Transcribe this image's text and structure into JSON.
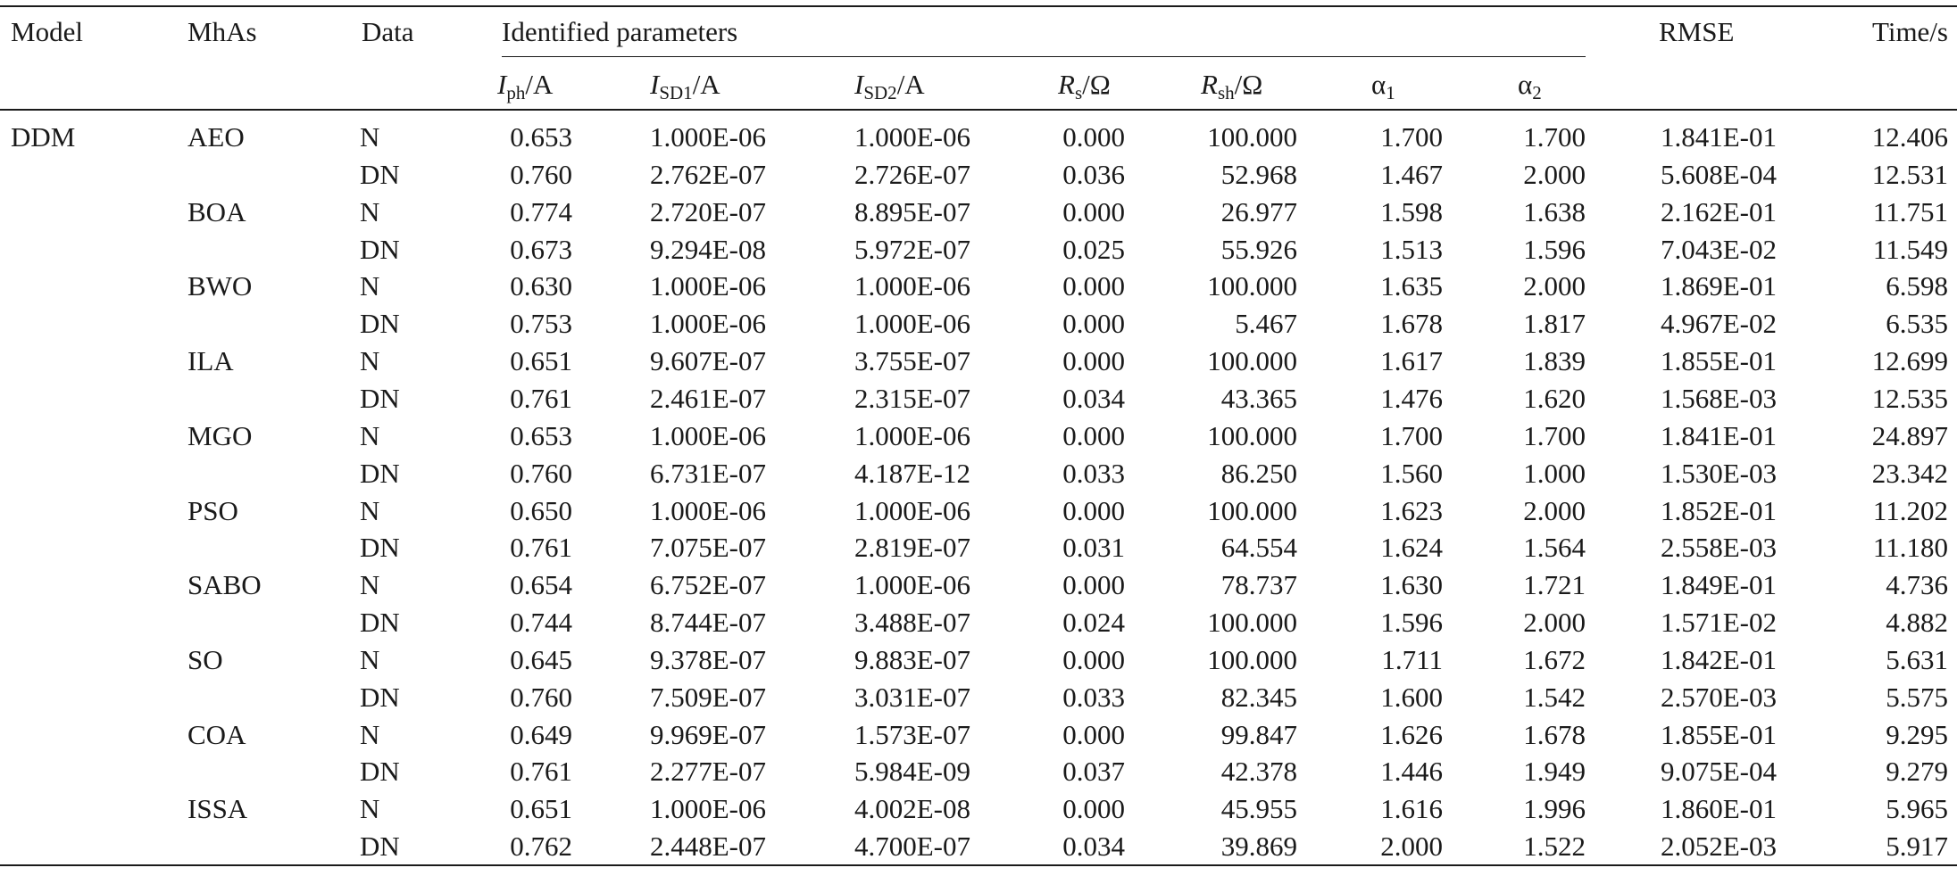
{
  "headers": {
    "model": "Model",
    "mhas": "MhAs",
    "data": "Data",
    "identified": "Identified parameters",
    "rmse": "RMSE",
    "time": "Time/s",
    "params": [
      {
        "sym": "I",
        "sub": "ph",
        "unit": "/A",
        "italic": true
      },
      {
        "sym": "I",
        "sub": "SD1",
        "unit": "/A",
        "italic": true
      },
      {
        "sym": "I",
        "sub": "SD2",
        "unit": "/A",
        "italic": true
      },
      {
        "sym": "R",
        "sub": "s",
        "unit": "/Ω",
        "italic": true
      },
      {
        "sym": "R",
        "sub": "sh",
        "unit": "/Ω",
        "italic": true
      },
      {
        "sym": "α",
        "sub": "1",
        "unit": "",
        "italic": false
      },
      {
        "sym": "α",
        "sub": "2",
        "unit": "",
        "italic": false
      }
    ]
  },
  "model_name": "DDM",
  "groups": [
    {
      "name": "AEO",
      "rows": [
        {
          "data": "N",
          "iph": "0.653",
          "isd1": "1.000E-06",
          "isd2": "1.000E-06",
          "rs": "0.000",
          "rsh": "100.000",
          "a1": "1.700",
          "a2": "1.700",
          "rmse": "1.841E-01",
          "time": "12.406"
        },
        {
          "data": "DN",
          "iph": "0.760",
          "isd1": "2.762E-07",
          "isd2": "2.726E-07",
          "rs": "0.036",
          "rsh": "52.968",
          "a1": "1.467",
          "a2": "2.000",
          "rmse": "5.608E-04",
          "time": "12.531"
        }
      ]
    },
    {
      "name": "BOA",
      "rows": [
        {
          "data": "N",
          "iph": "0.774",
          "isd1": "2.720E-07",
          "isd2": "8.895E-07",
          "rs": "0.000",
          "rsh": "26.977",
          "a1": "1.598",
          "a2": "1.638",
          "rmse": "2.162E-01",
          "time": "11.751"
        },
        {
          "data": "DN",
          "iph": "0.673",
          "isd1": "9.294E-08",
          "isd2": "5.972E-07",
          "rs": "0.025",
          "rsh": "55.926",
          "a1": "1.513",
          "a2": "1.596",
          "rmse": "7.043E-02",
          "time": "11.549"
        }
      ]
    },
    {
      "name": "BWO",
      "rows": [
        {
          "data": "N",
          "iph": "0.630",
          "isd1": "1.000E-06",
          "isd2": "1.000E-06",
          "rs": "0.000",
          "rsh": "100.000",
          "a1": "1.635",
          "a2": "2.000",
          "rmse": "1.869E-01",
          "time": "6.598"
        },
        {
          "data": "DN",
          "iph": "0.753",
          "isd1": "1.000E-06",
          "isd2": "1.000E-06",
          "rs": "0.000",
          "rsh": "5.467",
          "a1": "1.678",
          "a2": "1.817",
          "rmse": "4.967E-02",
          "time": "6.535"
        }
      ]
    },
    {
      "name": "ILA",
      "rows": [
        {
          "data": "N",
          "iph": "0.651",
          "isd1": "9.607E-07",
          "isd2": "3.755E-07",
          "rs": "0.000",
          "rsh": "100.000",
          "a1": "1.617",
          "a2": "1.839",
          "rmse": "1.855E-01",
          "time": "12.699"
        },
        {
          "data": "DN",
          "iph": "0.761",
          "isd1": "2.461E-07",
          "isd2": "2.315E-07",
          "rs": "0.034",
          "rsh": "43.365",
          "a1": "1.476",
          "a2": "1.620",
          "rmse": "1.568E-03",
          "time": "12.535"
        }
      ]
    },
    {
      "name": "MGO",
      "rows": [
        {
          "data": "N",
          "iph": "0.653",
          "isd1": "1.000E-06",
          "isd2": "1.000E-06",
          "rs": "0.000",
          "rsh": "100.000",
          "a1": "1.700",
          "a2": "1.700",
          "rmse": "1.841E-01",
          "time": "24.897"
        },
        {
          "data": "DN",
          "iph": "0.760",
          "isd1": "6.731E-07",
          "isd2": "4.187E-12",
          "rs": "0.033",
          "rsh": "86.250",
          "a1": "1.560",
          "a2": "1.000",
          "rmse": "1.530E-03",
          "time": "23.342"
        }
      ]
    },
    {
      "name": "PSO",
      "rows": [
        {
          "data": "N",
          "iph": "0.650",
          "isd1": "1.000E-06",
          "isd2": "1.000E-06",
          "rs": "0.000",
          "rsh": "100.000",
          "a1": "1.623",
          "a2": "2.000",
          "rmse": "1.852E-01",
          "time": "11.202"
        },
        {
          "data": "DN",
          "iph": "0.761",
          "isd1": "7.075E-07",
          "isd2": "2.819E-07",
          "rs": "0.031",
          "rsh": "64.554",
          "a1": "1.624",
          "a2": "1.564",
          "rmse": "2.558E-03",
          "time": "11.180"
        }
      ]
    },
    {
      "name": "SABO",
      "rows": [
        {
          "data": "N",
          "iph": "0.654",
          "isd1": "6.752E-07",
          "isd2": "1.000E-06",
          "rs": "0.000",
          "rsh": "78.737",
          "a1": "1.630",
          "a2": "1.721",
          "rmse": "1.849E-01",
          "time": "4.736"
        },
        {
          "data": "DN",
          "iph": "0.744",
          "isd1": "8.744E-07",
          "isd2": "3.488E-07",
          "rs": "0.024",
          "rsh": "100.000",
          "a1": "1.596",
          "a2": "2.000",
          "rmse": "1.571E-02",
          "time": "4.882"
        }
      ]
    },
    {
      "name": "SO",
      "rows": [
        {
          "data": "N",
          "iph": "0.645",
          "isd1": "9.378E-07",
          "isd2": "9.883E-07",
          "rs": "0.000",
          "rsh": "100.000",
          "a1": "1.711",
          "a2": "1.672",
          "rmse": "1.842E-01",
          "time": "5.631"
        },
        {
          "data": "DN",
          "iph": "0.760",
          "isd1": "7.509E-07",
          "isd2": "3.031E-07",
          "rs": "0.033",
          "rsh": "82.345",
          "a1": "1.600",
          "a2": "1.542",
          "rmse": "2.570E-03",
          "time": "5.575"
        }
      ]
    },
    {
      "name": "COA",
      "rows": [
        {
          "data": "N",
          "iph": "0.649",
          "isd1": "9.969E-07",
          "isd2": "1.573E-07",
          "rs": "0.000",
          "rsh": "99.847",
          "a1": "1.626",
          "a2": "1.678",
          "rmse": "1.855E-01",
          "time": "9.295"
        },
        {
          "data": "DN",
          "iph": "0.761",
          "isd1": "2.277E-07",
          "isd2": "5.984E-09",
          "rs": "0.037",
          "rsh": "42.378",
          "a1": "1.446",
          "a2": "1.949",
          "rmse": "9.075E-04",
          "time": "9.279"
        }
      ]
    },
    {
      "name": "ISSA",
      "rows": [
        {
          "data": "N",
          "iph": "0.651",
          "isd1": "1.000E-06",
          "isd2": "4.002E-08",
          "rs": "0.000",
          "rsh": "45.955",
          "a1": "1.616",
          "a2": "1.996",
          "rmse": "1.860E-01",
          "time": "5.965"
        },
        {
          "data": "DN",
          "iph": "0.762",
          "isd1": "2.448E-07",
          "isd2": "4.700E-07",
          "rs": "0.034",
          "rsh": "39.869",
          "a1": "2.000",
          "a2": "1.522",
          "rmse": "2.052E-03",
          "time": "5.917"
        }
      ]
    }
  ]
}
